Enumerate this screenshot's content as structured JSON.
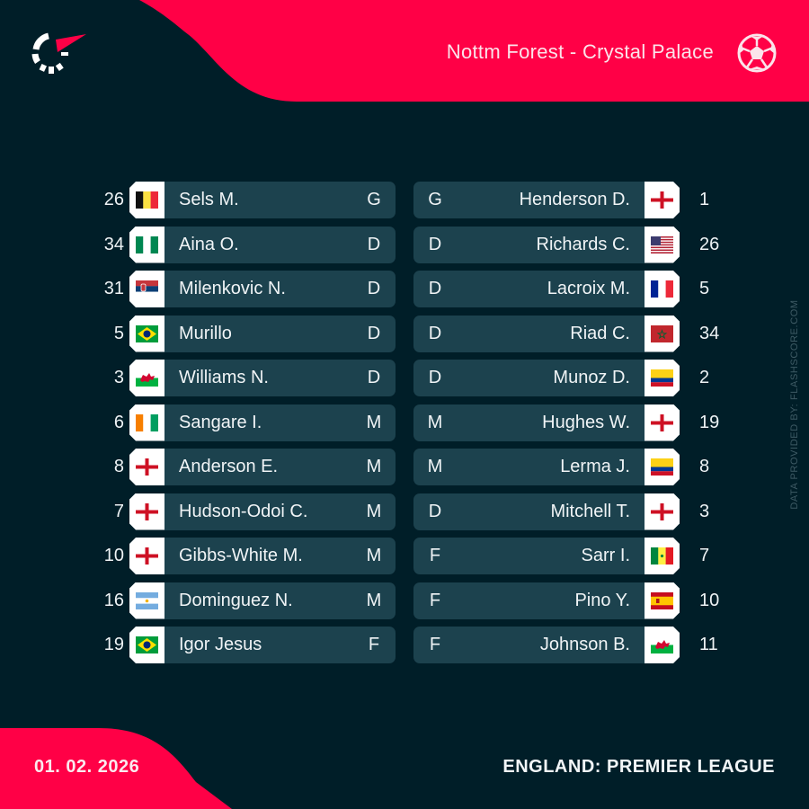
{
  "colors": {
    "background": "#001e28",
    "accent": "#ff0046",
    "row": "#1c424e"
  },
  "header": {
    "logo_icon": "flashscore-logo-icon",
    "match_title": "Nottm Forest - Crystal Palace",
    "sport_icon": "soccer-ball-icon"
  },
  "home": {
    "team": "Nottm Forest",
    "players": [
      {
        "number": "26",
        "name": "Sels M.",
        "position": "G",
        "flag": "belgium"
      },
      {
        "number": "34",
        "name": "Aina O.",
        "position": "D",
        "flag": "nigeria"
      },
      {
        "number": "31",
        "name": "Milenkovic N.",
        "position": "D",
        "flag": "serbia"
      },
      {
        "number": "5",
        "name": "Murillo",
        "position": "D",
        "flag": "brazil"
      },
      {
        "number": "3",
        "name": "Williams N.",
        "position": "D",
        "flag": "wales"
      },
      {
        "number": "6",
        "name": "Sangare I.",
        "position": "M",
        "flag": "ivory-coast"
      },
      {
        "number": "8",
        "name": "Anderson E.",
        "position": "M",
        "flag": "england"
      },
      {
        "number": "7",
        "name": "Hudson-Odoi C.",
        "position": "M",
        "flag": "england"
      },
      {
        "number": "10",
        "name": "Gibbs-White M.",
        "position": "M",
        "flag": "england"
      },
      {
        "number": "16",
        "name": "Dominguez N.",
        "position": "M",
        "flag": "argentina"
      },
      {
        "number": "19",
        "name": "Igor Jesus",
        "position": "F",
        "flag": "brazil"
      }
    ]
  },
  "away": {
    "team": "Crystal Palace",
    "players": [
      {
        "number": "1",
        "name": "Henderson D.",
        "position": "G",
        "flag": "england"
      },
      {
        "number": "26",
        "name": "Richards C.",
        "position": "D",
        "flag": "usa"
      },
      {
        "number": "5",
        "name": "Lacroix M.",
        "position": "D",
        "flag": "france"
      },
      {
        "number": "34",
        "name": "Riad C.",
        "position": "D",
        "flag": "morocco"
      },
      {
        "number": "2",
        "name": "Munoz D.",
        "position": "D",
        "flag": "colombia"
      },
      {
        "number": "19",
        "name": "Hughes W.",
        "position": "M",
        "flag": "england"
      },
      {
        "number": "8",
        "name": "Lerma J.",
        "position": "M",
        "flag": "colombia"
      },
      {
        "number": "3",
        "name": "Mitchell T.",
        "position": "D",
        "flag": "england"
      },
      {
        "number": "7",
        "name": "Sarr I.",
        "position": "F",
        "flag": "senegal"
      },
      {
        "number": "10",
        "name": "Pino Y.",
        "position": "F",
        "flag": "spain"
      },
      {
        "number": "11",
        "name": "Johnson B.",
        "position": "F",
        "flag": "wales"
      }
    ]
  },
  "credit": "DATA PROVIDED BY: FLASHSCORE.COM",
  "footer": {
    "date": "01. 02. 2026",
    "league": "ENGLAND: PREMIER LEAGUE"
  }
}
